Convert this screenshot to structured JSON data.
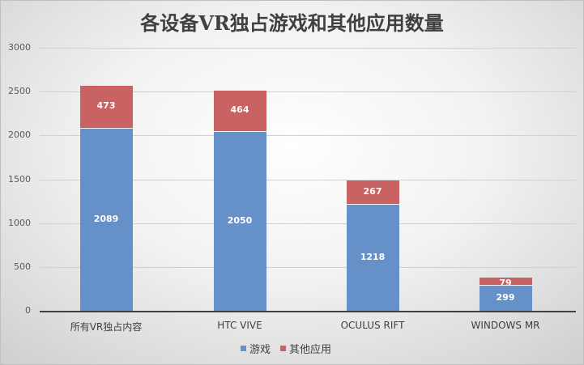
{
  "chart_data": {
    "type": "bar",
    "stacked": true,
    "title": "各设备VR独占游戏和其他应用数量",
    "xlabel": "",
    "ylabel": "",
    "categories": [
      "所有VR独占内容",
      "HTC VIVE",
      "OCULUS RIFT",
      "WINDOWS MR"
    ],
    "series": [
      {
        "name": "游戏",
        "color": "#6590c8",
        "values": [
          2089,
          2050,
          1218,
          299
        ]
      },
      {
        "name": "其他应用",
        "color": "#c96262",
        "values": [
          473,
          464,
          267,
          79
        ]
      }
    ],
    "ylim": [
      0,
      3000
    ],
    "yticks": [
      "0",
      "500",
      "1000",
      "1500",
      "2000",
      "2500",
      "3000"
    ],
    "grid": true,
    "legend_position": "bottom"
  },
  "legend": {
    "items": [
      {
        "label": "游戏",
        "color": "#6590c8"
      },
      {
        "label": "其他应用",
        "color": "#c96262"
      }
    ]
  }
}
